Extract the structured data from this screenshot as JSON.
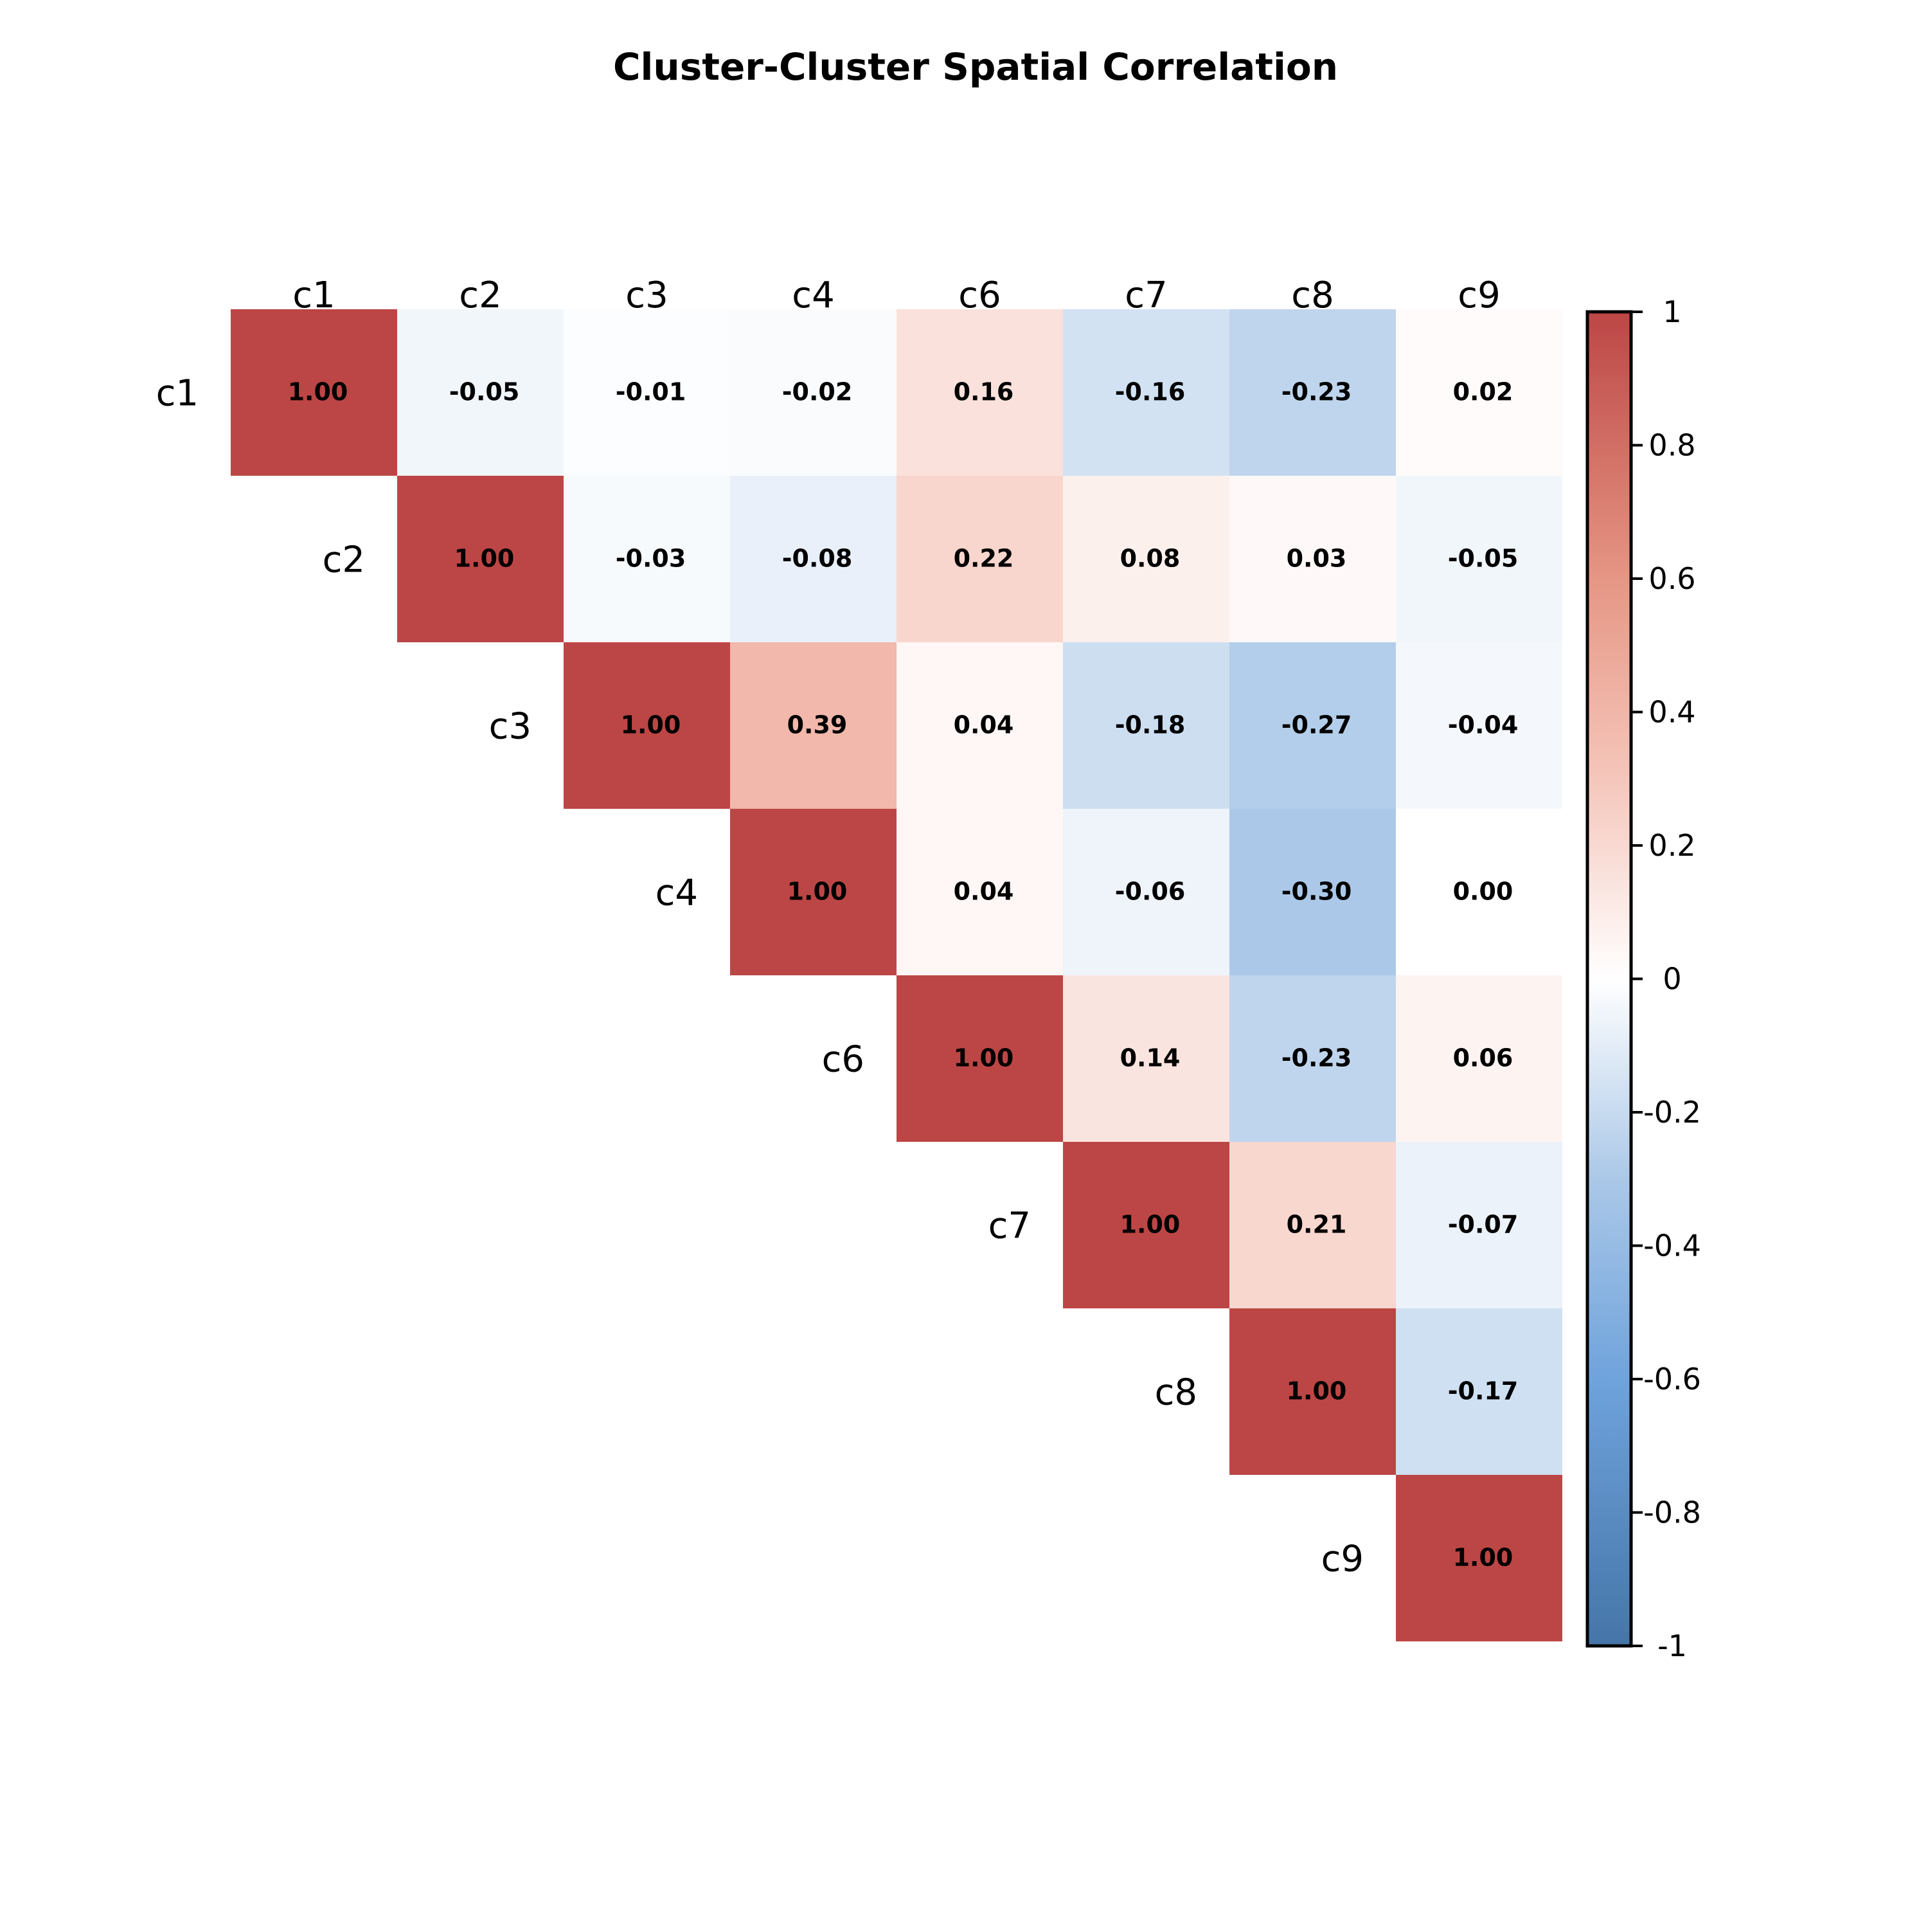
{
  "chart_data": {
    "type": "heatmap",
    "title": "Cluster-Cluster Spatial Correlation",
    "subtitle": "",
    "xlabel": "",
    "ylabel": "",
    "matrix_shape": "upper-triangle",
    "row_labels": [
      "c1",
      "c2",
      "c3",
      "c4",
      "c6",
      "c7",
      "c8",
      "c9"
    ],
    "col_labels": [
      "c1",
      "c2",
      "c3",
      "c4",
      "c6",
      "c7",
      "c8",
      "c9"
    ],
    "values": [
      [
        1.0,
        -0.05,
        -0.01,
        -0.02,
        0.16,
        -0.16,
        -0.23,
        0.02
      ],
      [
        null,
        1.0,
        -0.03,
        -0.08,
        0.22,
        0.08,
        0.03,
        -0.05
      ],
      [
        null,
        null,
        1.0,
        0.39,
        0.04,
        -0.18,
        -0.27,
        -0.04
      ],
      [
        null,
        null,
        null,
        1.0,
        0.04,
        -0.06,
        -0.3,
        0.0
      ],
      [
        null,
        null,
        null,
        null,
        1.0,
        0.14,
        -0.23,
        0.06
      ],
      [
        null,
        null,
        null,
        null,
        null,
        1.0,
        0.21,
        -0.07
      ],
      [
        null,
        null,
        null,
        null,
        null,
        null,
        1.0,
        -0.17
      ],
      [
        null,
        null,
        null,
        null,
        null,
        null,
        null,
        1.0
      ]
    ],
    "cell_labels": [
      [
        "1.00",
        "-0.05",
        "-0.01",
        "-0.02",
        "0.16",
        "-0.16",
        "-0.23",
        "0.02"
      ],
      [
        null,
        "1.00",
        "-0.03",
        "-0.08",
        "0.22",
        "0.08",
        "0.03",
        "-0.05"
      ],
      [
        null,
        null,
        "1.00",
        "0.39",
        "0.04",
        "-0.18",
        "-0.27",
        "-0.04"
      ],
      [
        null,
        null,
        null,
        "1.00",
        "0.04",
        "-0.06",
        "-0.30",
        "0.00"
      ],
      [
        null,
        null,
        null,
        null,
        "1.00",
        "0.14",
        "-0.23",
        "0.06"
      ],
      [
        null,
        null,
        null,
        null,
        null,
        "1.00",
        "0.21",
        "-0.07"
      ],
      [
        null,
        null,
        null,
        null,
        null,
        null,
        "1.00",
        "-0.17"
      ],
      [
        null,
        null,
        null,
        null,
        null,
        null,
        null,
        "1.00"
      ]
    ],
    "colorbar": {
      "range": [
        -1,
        1
      ],
      "ticks": [
        1,
        0.8,
        0.6,
        0.4,
        0.2,
        0,
        -0.2,
        -0.4,
        -0.6,
        -0.8,
        -1
      ],
      "tick_labels": [
        "1",
        "0.8",
        "0.6",
        "0.4",
        "0.2",
        "0",
        "-0.2",
        "-0.4",
        "-0.6",
        "-0.8",
        "-1"
      ],
      "placement": "right",
      "color_stops": [
        {
          "value": -1,
          "color": "#4575a8"
        },
        {
          "value": -0.6,
          "color": "#6fa3dc"
        },
        {
          "value": -0.3,
          "color": "#abc8e8"
        },
        {
          "value": 0,
          "color": "#ffffff"
        },
        {
          "value": 0.3,
          "color": "#f5c6bb"
        },
        {
          "value": 0.6,
          "color": "#e69684"
        },
        {
          "value": 1,
          "color": "#bc4645"
        }
      ]
    },
    "grid": false
  }
}
